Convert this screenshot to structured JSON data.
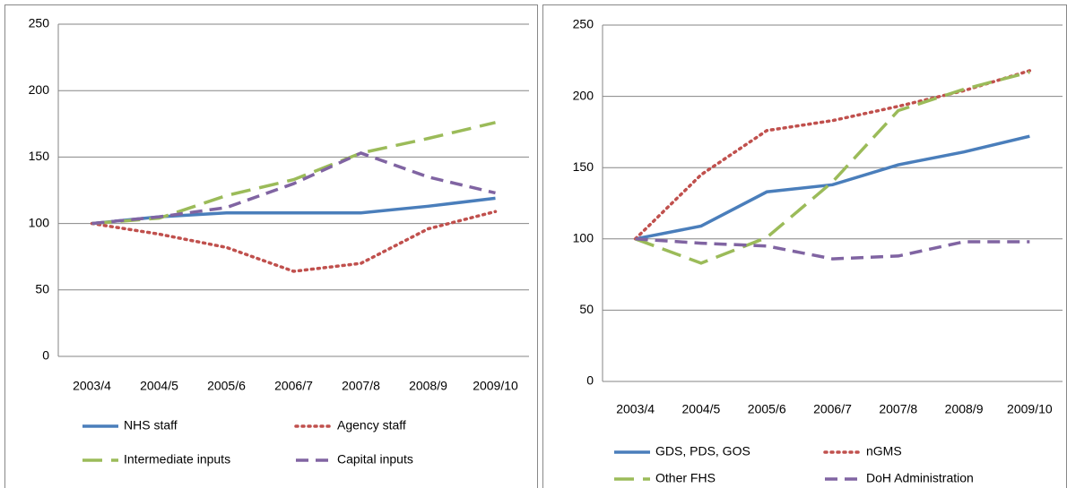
{
  "chart_data": [
    {
      "type": "line",
      "categories": [
        "2003/4",
        "2004/5",
        "2005/6",
        "2006/7",
        "2007/8",
        "2008/9",
        "2009/10"
      ],
      "ylim": [
        0,
        250
      ],
      "yticks": [
        0,
        50,
        100,
        150,
        200,
        250
      ],
      "grid": true,
      "series": [
        {
          "name": "NHS staff",
          "color": "#4a7ebb",
          "style": "solid",
          "values": [
            100,
            105,
            108,
            108,
            108,
            113,
            119
          ]
        },
        {
          "name": "Agency staff",
          "color": "#c0504d",
          "style": "dotted",
          "values": [
            100,
            92,
            82,
            64,
            70,
            96,
            109
          ]
        },
        {
          "name": "Intermediate inputs",
          "color": "#9bbb59",
          "style": "long-dash",
          "values": [
            100,
            104,
            121,
            133,
            153,
            164,
            176
          ]
        },
        {
          "name": "Capital inputs",
          "color": "#8064a2",
          "style": "dashed",
          "values": [
            100,
            105,
            112,
            130,
            153,
            135,
            123
          ]
        }
      ]
    },
    {
      "type": "line",
      "categories": [
        "2003/4",
        "2004/5",
        "2005/6",
        "2006/7",
        "2007/8",
        "2008/9",
        "2009/10"
      ],
      "ylim": [
        0,
        250
      ],
      "yticks": [
        0,
        50,
        100,
        150,
        200,
        250
      ],
      "grid": true,
      "series": [
        {
          "name": "GDS, PDS, GOS",
          "color": "#4a7ebb",
          "style": "solid",
          "values": [
            100,
            109,
            133,
            138,
            152,
            161,
            172
          ]
        },
        {
          "name": "nGMS",
          "color": "#c0504d",
          "style": "dotted",
          "values": [
            100,
            145,
            176,
            183,
            193,
            204,
            218
          ]
        },
        {
          "name": "Other FHS",
          "color": "#9bbb59",
          "style": "long-dash",
          "values": [
            100,
            83,
            101,
            140,
            190,
            205,
            217
          ]
        },
        {
          "name": "DoH Administration",
          "color": "#8064a2",
          "style": "dashed",
          "values": [
            100,
            97,
            95,
            86,
            88,
            98,
            98
          ]
        }
      ]
    }
  ]
}
